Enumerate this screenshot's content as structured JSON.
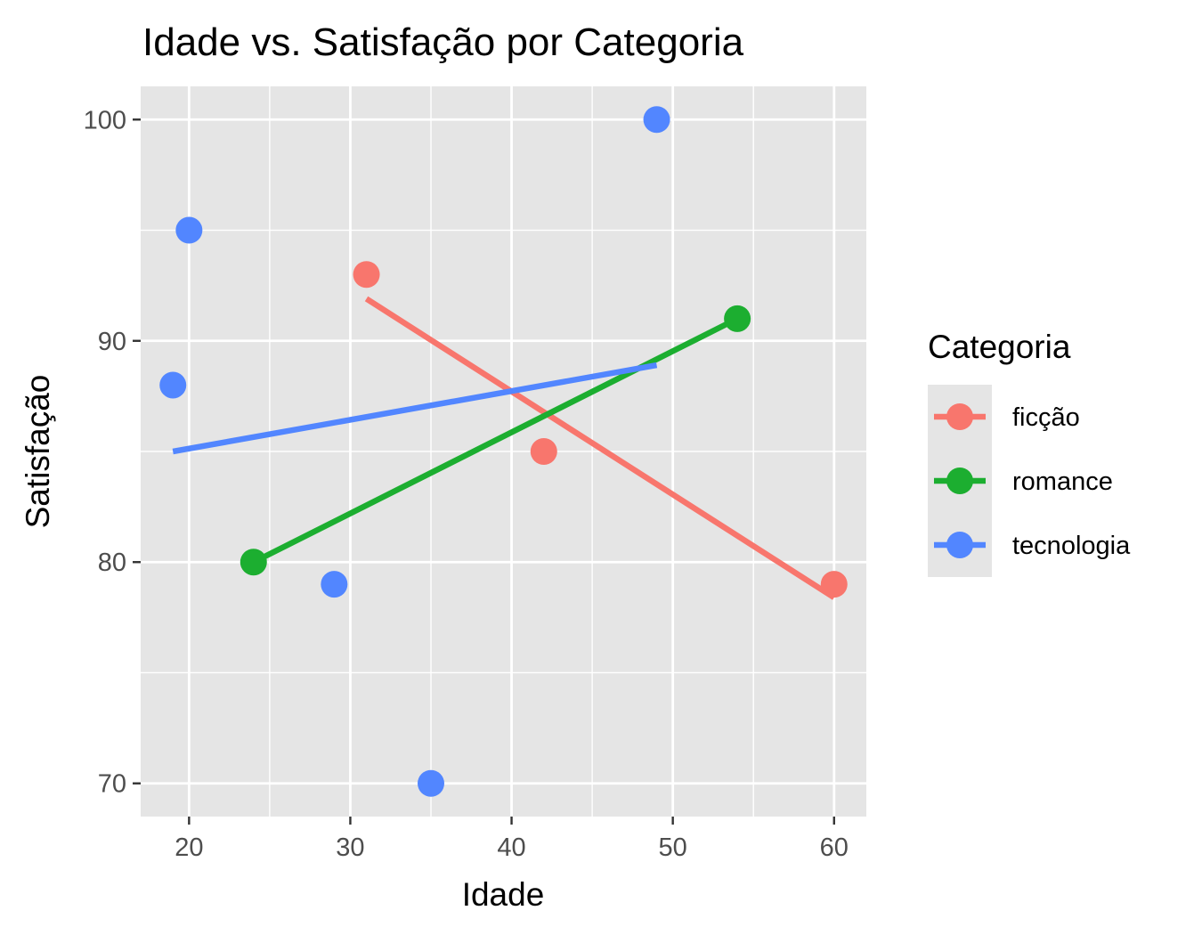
{
  "chart_data": {
    "type": "scatter",
    "title": "Idade vs. Satisfação por Categoria",
    "xlabel": "Idade",
    "ylabel": "Satisfação",
    "xlim": [
      17,
      62
    ],
    "ylim": [
      68.5,
      101.5
    ],
    "x_ticks": [
      20,
      30,
      40,
      50,
      60
    ],
    "y_ticks": [
      70,
      80,
      90,
      100
    ],
    "x_tick_labels": [
      "20",
      "30",
      "40",
      "50",
      "60"
    ],
    "y_tick_labels": [
      "70",
      "80",
      "90",
      "100"
    ],
    "grid": true,
    "legend_title": "Categoria",
    "legend_position": "right",
    "series": [
      {
        "name": "ficção",
        "color": "#F8766D",
        "points": [
          [
            31,
            93
          ],
          [
            42,
            85
          ],
          [
            60,
            79
          ]
        ],
        "trend": [
          [
            31,
            91.9
          ],
          [
            60,
            78.4
          ]
        ]
      },
      {
        "name": "romance",
        "color": "#1CAE30",
        "points": [
          [
            24,
            80
          ],
          [
            54,
            91
          ]
        ],
        "trend": [
          [
            24,
            80
          ],
          [
            54,
            91
          ]
        ]
      },
      {
        "name": "tecnologia",
        "color": "#5286FF",
        "points": [
          [
            19,
            88
          ],
          [
            20,
            95
          ],
          [
            29,
            79
          ],
          [
            35,
            70
          ],
          [
            49,
            100
          ]
        ],
        "trend": [
          [
            19,
            85
          ],
          [
            49,
            88.9
          ]
        ]
      }
    ]
  }
}
